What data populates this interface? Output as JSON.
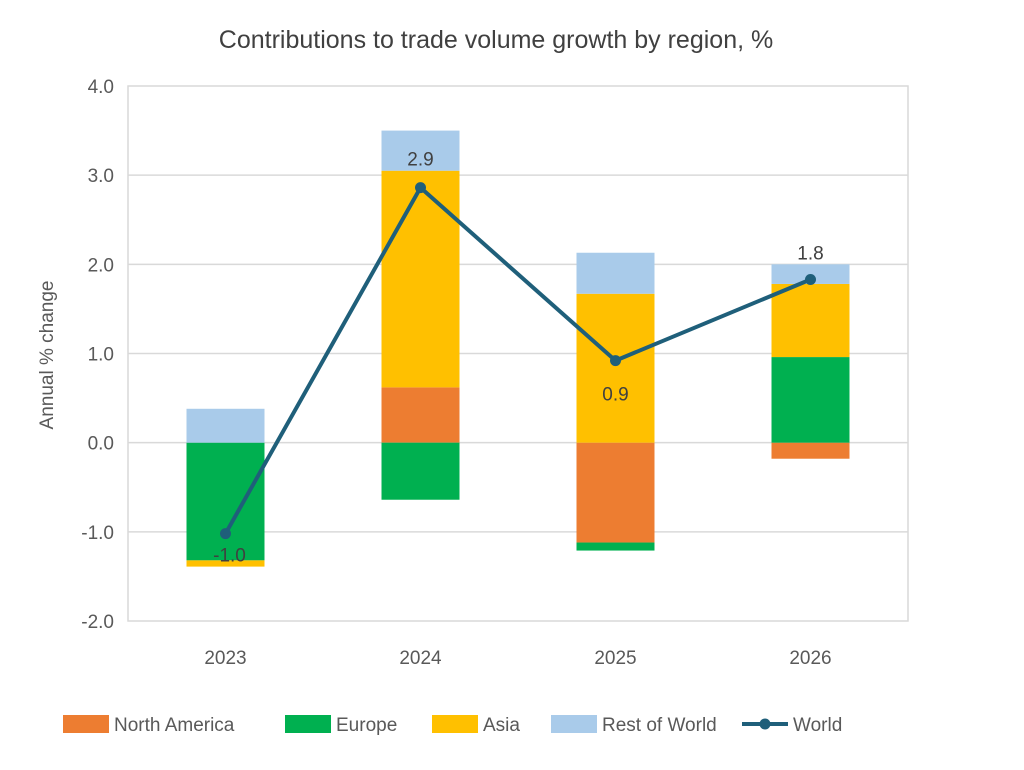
{
  "chart_data": {
    "type": "bar",
    "stacked": true,
    "title": "Contributions to trade volume growth by region, %",
    "xlabel": "",
    "ylabel": "Annual % change",
    "ylim": [
      -2.0,
      4.0
    ],
    "yticks": [
      "-2.0",
      "-1.0",
      "0.0",
      "1.0",
      "2.0",
      "3.0",
      "4.0"
    ],
    "grid": true,
    "legend_position": "bottom",
    "categories": [
      "2023",
      "2024",
      "2025",
      "2026"
    ],
    "series": [
      {
        "name": "North America",
        "kind": "bar",
        "color": "#ED7D31",
        "values": [
          0.0,
          0.62,
          -1.12,
          -0.18
        ]
      },
      {
        "name": "Europe",
        "kind": "bar",
        "color": "#00B050",
        "values": [
          -1.32,
          -0.64,
          -0.09,
          0.96
        ]
      },
      {
        "name": "Asia",
        "kind": "bar",
        "color": "#FFC000",
        "values": [
          -0.07,
          2.43,
          1.67,
          0.82
        ]
      },
      {
        "name": "Rest of World",
        "kind": "bar",
        "color": "#A9CBEA",
        "values": [
          0.38,
          0.45,
          0.46,
          0.22
        ]
      },
      {
        "name": "World",
        "kind": "line",
        "color": "#1F5F7A",
        "values": [
          -1.02,
          2.86,
          0.92,
          1.83
        ],
        "labels": [
          "-1.0",
          "2.9",
          "0.9",
          "1.8"
        ]
      }
    ]
  }
}
